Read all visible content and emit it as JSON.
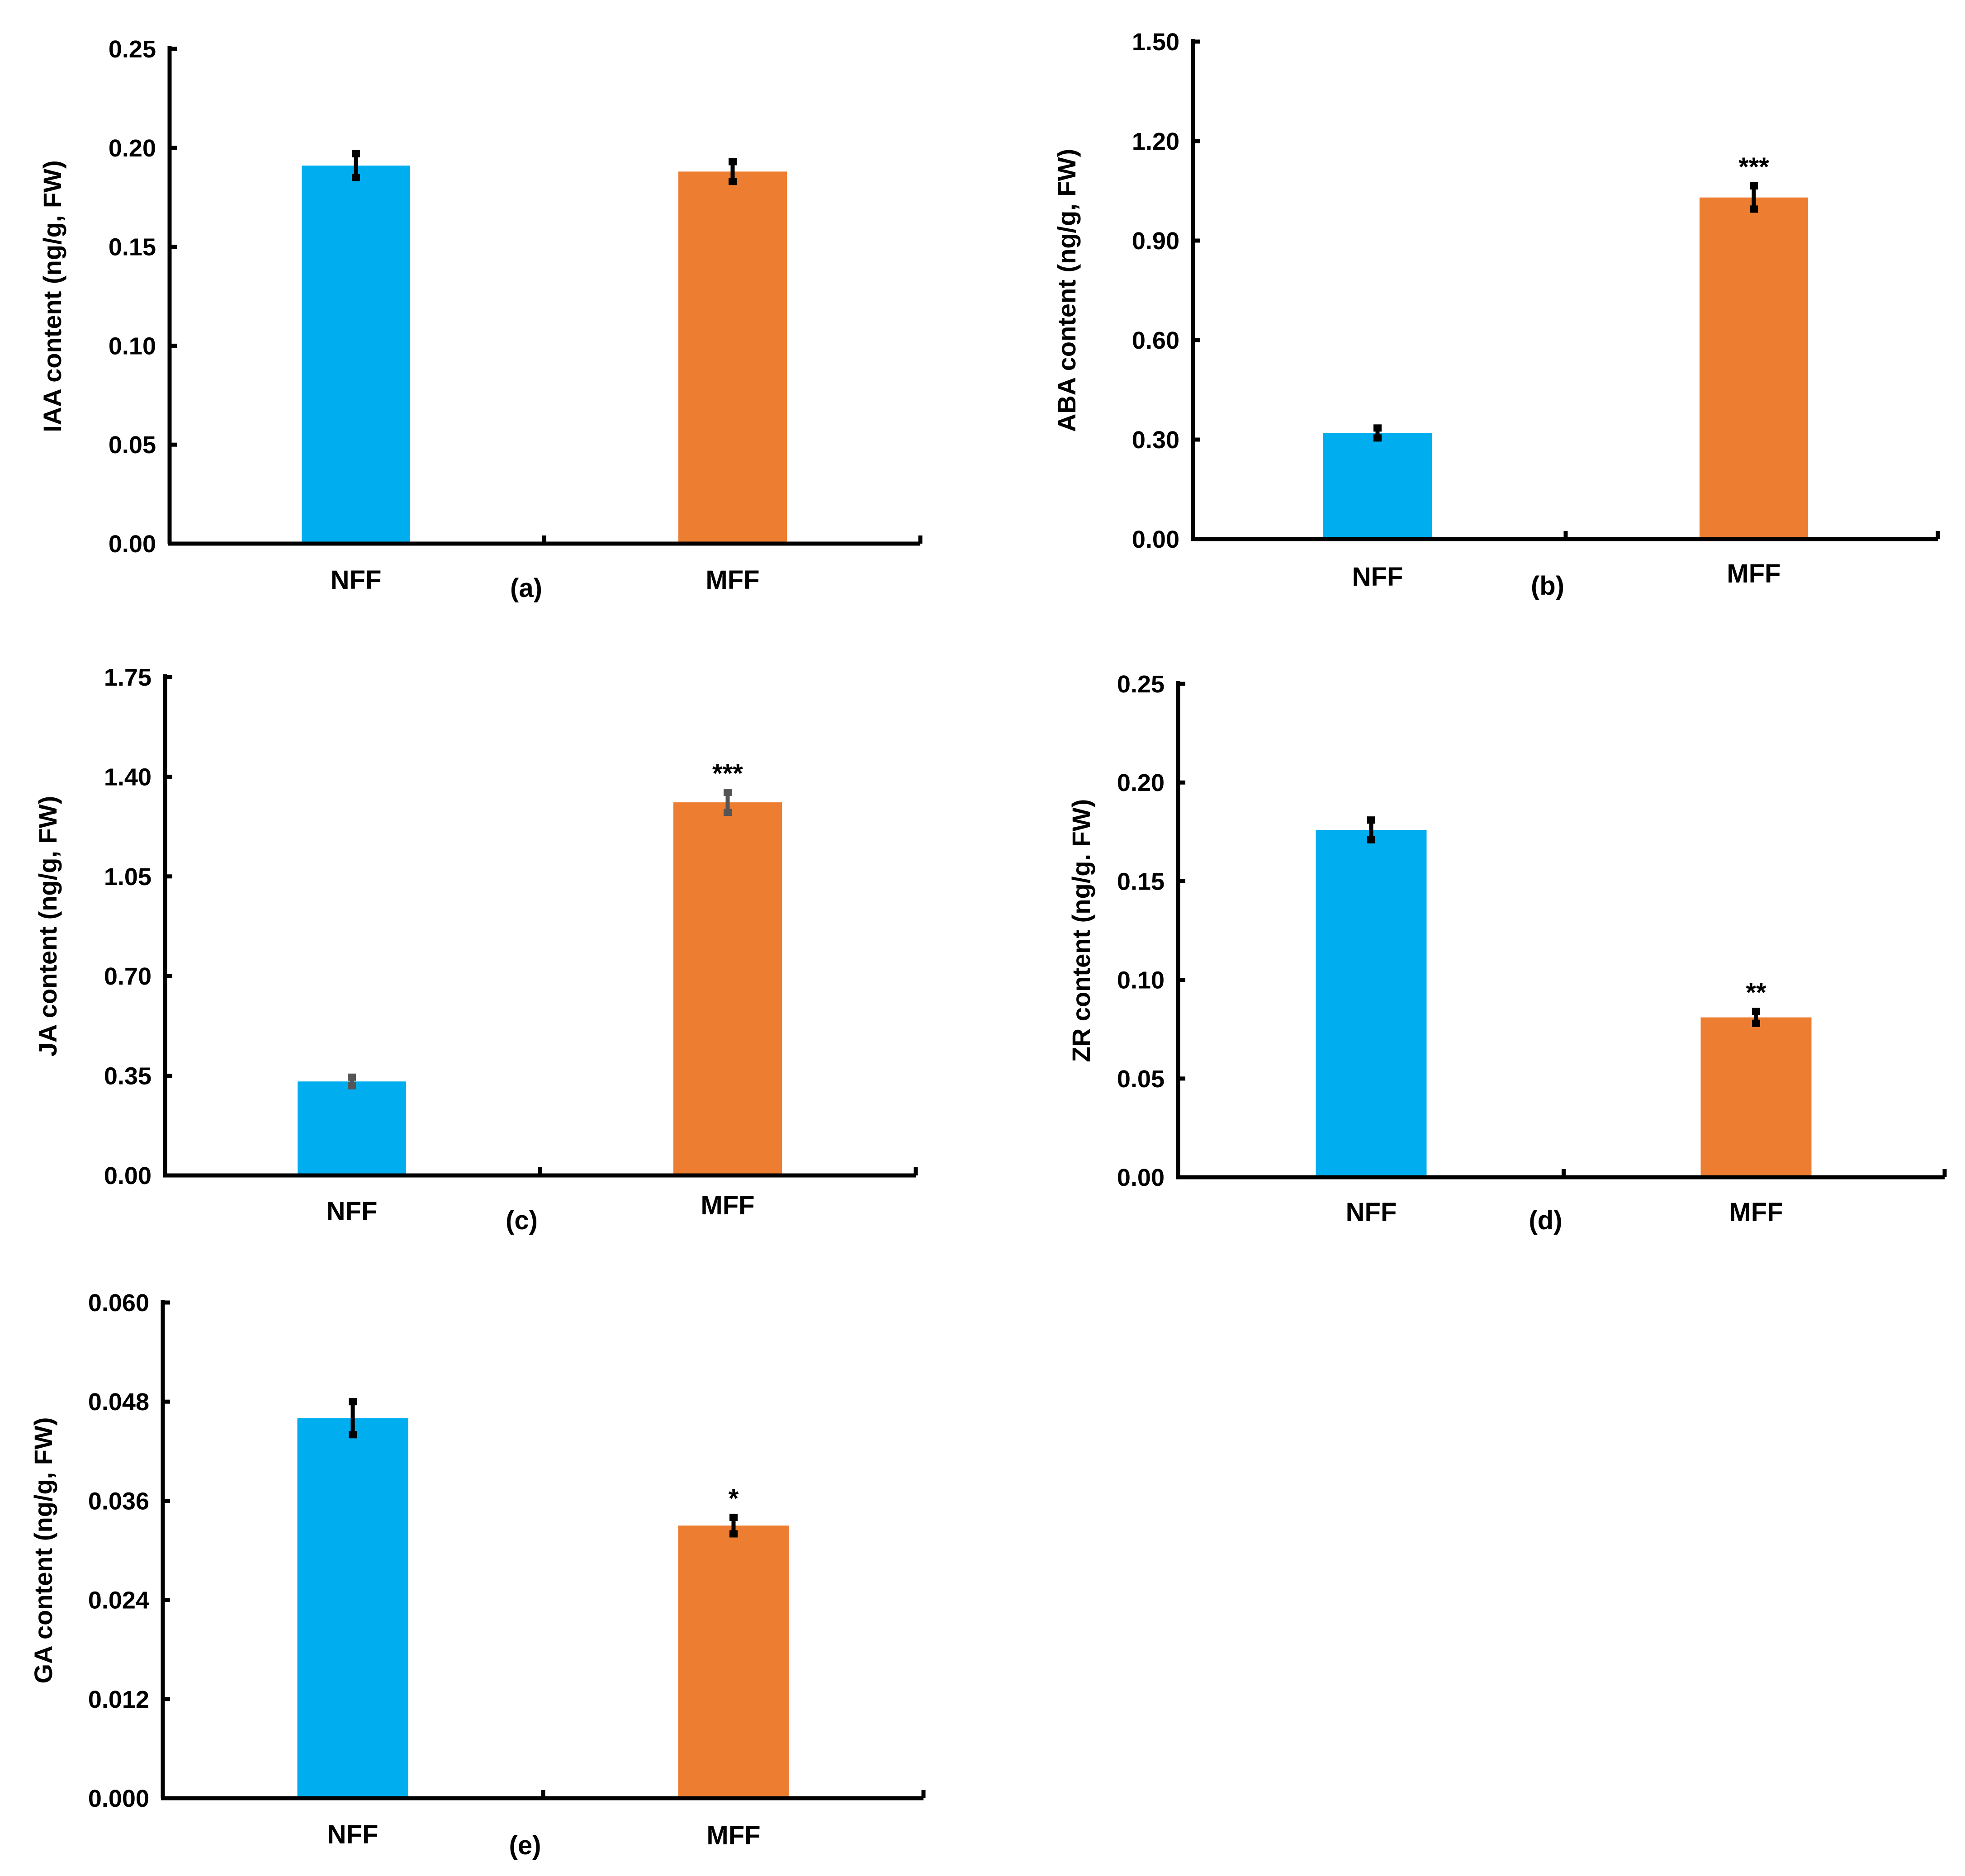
{
  "colors": {
    "NFF": "#00AEEF",
    "MFF": "#ED7D31",
    "axis": "#000000",
    "errorbar": "#000000",
    "errorbar_gray": "#555555"
  },
  "chart_data": [
    {
      "id": "a",
      "type": "bar",
      "panel_label": "(a)",
      "categories": [
        "NFF",
        "MFF"
      ],
      "values": [
        0.191,
        0.188
      ],
      "errors": [
        0.006,
        0.005
      ],
      "significance": [
        "",
        ""
      ],
      "ylabel": "IAA content (ng/g, FW)",
      "ylim": [
        0,
        0.25
      ],
      "yticks": [
        "0.00",
        "0.05",
        "0.10",
        "0.15",
        "0.20",
        "0.25"
      ],
      "errorbar_color": "#000000"
    },
    {
      "id": "b",
      "type": "bar",
      "panel_label": "(b)",
      "categories": [
        "NFF",
        "MFF"
      ],
      "values": [
        0.32,
        1.03
      ],
      "errors": [
        0.015,
        0.035
      ],
      "significance": [
        "",
        "***"
      ],
      "ylabel": "ABA content (ng/g, FW)",
      "ylim": [
        0,
        1.5
      ],
      "yticks": [
        "0.00",
        "0.30",
        "0.60",
        "0.90",
        "1.20",
        "1.50"
      ],
      "errorbar_color": "#000000"
    },
    {
      "id": "c",
      "type": "bar",
      "panel_label": "(c)",
      "categories": [
        "NFF",
        "MFF"
      ],
      "values": [
        0.33,
        1.31
      ],
      "errors": [
        0.015,
        0.035
      ],
      "significance": [
        "",
        "***"
      ],
      "ylabel": "JA content (ng/g, FW)",
      "ylim": [
        0,
        1.75
      ],
      "yticks": [
        "0.00",
        "0.35",
        "0.70",
        "1.05",
        "1.40",
        "1.75"
      ],
      "errorbar_color": "#555555"
    },
    {
      "id": "d",
      "type": "bar",
      "panel_label": "(d)",
      "categories": [
        "NFF",
        "MFF"
      ],
      "values": [
        0.176,
        0.081
      ],
      "errors": [
        0.005,
        0.003
      ],
      "significance": [
        "",
        "**"
      ],
      "ylabel": "ZR  content (ng/g. FW)",
      "ylim": [
        0,
        0.25
      ],
      "yticks": [
        "0.00",
        "0.05",
        "0.10",
        "0.15",
        "0.20",
        "0.25"
      ],
      "errorbar_color": "#000000"
    },
    {
      "id": "e",
      "type": "bar",
      "panel_label": "(e)",
      "categories": [
        "NFF",
        "MFF"
      ],
      "values": [
        0.046,
        0.033
      ],
      "errors": [
        0.002,
        0.001
      ],
      "significance": [
        "",
        "*"
      ],
      "ylabel": "GA  content (ng/g, FW)",
      "ylim": [
        0,
        0.06
      ],
      "yticks": [
        "0.000",
        "0.012",
        "0.024",
        "0.036",
        "0.048",
        "0.060"
      ],
      "errorbar_color": "#000000"
    }
  ]
}
